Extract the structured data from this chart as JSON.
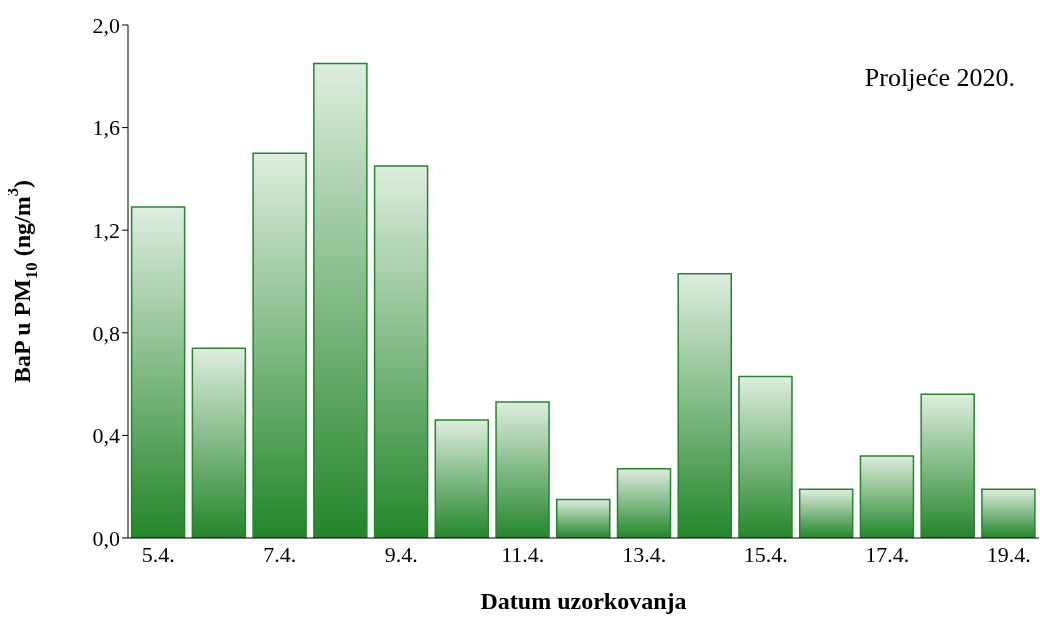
{
  "chart_data": {
    "type": "bar",
    "xlabel": "Datum uzorkovanja",
    "ylabel": "BaP u PM$_{10}$ (ng/m$^{3}$)",
    "annotations": [
      "Proljeće 2020."
    ],
    "categories": [
      "5.4.",
      null,
      "7.4.",
      null,
      "9.4.",
      null,
      "11.4.",
      null,
      "13.4.",
      null,
      "15.4.",
      null,
      "17.4.",
      null,
      "19.4."
    ],
    "values": [
      1.29,
      0.74,
      1.5,
      1.85,
      1.45,
      0.46,
      0.53,
      0.15,
      0.27,
      1.03,
      0.63,
      0.19,
      0.32,
      0.56,
      0.19
    ],
    "color": "#23862a",
    "ylim": [
      0,
      2
    ],
    "yticks": [
      {
        "value": 0,
        "label": "0,0"
      },
      {
        "value": 0.4,
        "label": "0,4"
      },
      {
        "value": 0.8,
        "label": "0,8"
      },
      {
        "value": 1.2,
        "label": "1,2"
      },
      {
        "value": 1.6,
        "label": "1,6"
      },
      {
        "value": 2,
        "label": "2,0"
      }
    ],
    "grid": false,
    "legend": false
  }
}
